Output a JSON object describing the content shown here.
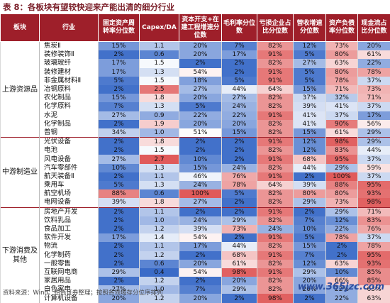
{
  "title": "表 8：各板块有望较快迎来产能出清的细分行业",
  "headers": [
    "板块",
    "行业",
    "固定资产周转率分位数",
    "Capex/DA",
    "资本开支+在建工程增速分位数",
    "毛利率分位数",
    "亏损企业占比分位数",
    "营收增速分位数",
    "资产负债率分位数",
    "现金流占比分位数"
  ],
  "groups": [
    {
      "name": "上游资源品",
      "rows": [
        {
          "industry": "焦炭Ⅱ",
          "values": [
            "15%",
            "1.1",
            "20%",
            "7%",
            "82%",
            "12%",
            "73%",
            "20%"
          ]
        },
        {
          "industry": "装修装饰Ⅱ",
          "values": [
            "2%",
            "0.6",
            "20%",
            "17%",
            "91%",
            "5%",
            "80%",
            "61%"
          ]
        },
        {
          "industry": "玻璃玻纤",
          "values": [
            "17%",
            "1.5",
            "2%",
            "2%",
            "82%",
            "27%",
            "63%",
            "22%"
          ]
        },
        {
          "industry": "装修建材",
          "values": [
            "17%",
            "1.3",
            "54%",
            "2%",
            "91%",
            "5%",
            "80%",
            "78%"
          ]
        },
        {
          "industry": "非金属材料Ⅱ",
          "values": [
            "5%",
            "1.5",
            "18%",
            "5%",
            "91%",
            "5%",
            "78%",
            "37%"
          ]
        },
        {
          "industry": "冶钢原料",
          "values": [
            "2%",
            "2.5",
            "27%",
            "44%",
            "64%",
            "15%",
            "71%",
            "73%"
          ]
        },
        {
          "industry": "农化制品",
          "values": [
            "15%",
            "1.8",
            "20%",
            "27%",
            "82%",
            "37%",
            "32%",
            "71%"
          ]
        },
        {
          "industry": "化学原料",
          "values": [
            "7%",
            "1.3",
            "5%",
            "24%",
            "82%",
            "39%",
            "41%",
            "37%"
          ]
        },
        {
          "industry": "水泥",
          "values": [
            "27%",
            "0.9",
            "22%",
            "22%",
            "91%",
            "41%",
            "37%",
            "17%"
          ]
        },
        {
          "industry": "化学制品",
          "values": [
            "2%",
            "1.9",
            "20%",
            "20%",
            "82%",
            "41%",
            "90%",
            "56%"
          ]
        },
        {
          "industry": "普钢",
          "values": [
            "34%",
            "1.0",
            "51%",
            "15%",
            "82%",
            "15%",
            "61%",
            "29%"
          ]
        }
      ]
    },
    {
      "name": "中游制造业",
      "rows": [
        {
          "industry": "光伏设备",
          "values": [
            "2%",
            "1.8",
            "2%",
            "2%",
            "91%",
            "12%",
            "98%",
            "29%"
          ]
        },
        {
          "industry": "电池",
          "values": [
            "2%",
            "1.5",
            "2%",
            "2%",
            "82%",
            "12%",
            "83%",
            "44%"
          ]
        },
        {
          "industry": "风电设备",
          "values": [
            "27%",
            "2.7",
            "10%",
            "2%",
            "91%",
            "68%",
            "95%",
            "37%"
          ]
        },
        {
          "industry": "汽车零部件",
          "values": [
            "10%",
            "1.3",
            "15%",
            "24%",
            "82%",
            "44%",
            "29%",
            "59%"
          ]
        },
        {
          "industry": "航天装备Ⅱ",
          "values": [
            "2%",
            "1.1",
            "46%",
            "76%",
            "91%",
            "2%",
            "100%",
            "37%"
          ]
        },
        {
          "industry": "乘用车",
          "values": [
            "5%",
            "1.3",
            "24%",
            "78%",
            "64%",
            "39%",
            "88%",
            "95%"
          ]
        },
        {
          "industry": "航空机场",
          "values": [
            "88%",
            "0.6",
            "100%",
            "5%",
            "82%",
            "80%",
            "80%",
            "93%"
          ]
        },
        {
          "industry": "电网设备",
          "values": [
            "39%",
            "1.8",
            "27%",
            "2%",
            "82%",
            "29%",
            "73%",
            "98%"
          ]
        }
      ]
    },
    {
      "name": "下游消费及其他",
      "rows": [
        {
          "industry": "房地产开发",
          "values": [
            "2%",
            "1.1",
            "2%",
            "2%",
            "91%",
            "2%",
            "29%",
            "71%"
          ]
        },
        {
          "industry": "饮料乳品",
          "values": [
            "2%",
            "1.0",
            "24%",
            "29%",
            "82%",
            "7%",
            "12%",
            "83%"
          ]
        },
        {
          "industry": "食品加工",
          "values": [
            "2%",
            "1.2",
            "39%",
            "73%",
            "24%",
            "10%",
            "22%",
            "76%"
          ]
        },
        {
          "industry": "软件开发",
          "values": [
            "17%",
            "1.4",
            "54%",
            "2%",
            "91%",
            "5%",
            "78%",
            "37%"
          ]
        },
        {
          "industry": "物流",
          "values": [
            "2%",
            "1.1",
            "17%",
            "44%",
            "82%",
            "15%",
            "2%",
            "78%"
          ]
        },
        {
          "industry": "化学制药",
          "values": [
            "2%",
            "1.2",
            "2%",
            "68%",
            "91%",
            "7%",
            "2%",
            "95%"
          ]
        },
        {
          "industry": "一般零售",
          "values": [
            "2%",
            "0.6",
            "20%",
            "61%",
            "82%",
            "12%",
            "63%",
            "93%"
          ]
        },
        {
          "industry": "互联网电商",
          "values": [
            "29%",
            "0.4",
            "54%",
            "98%",
            "91%",
            "29%",
            "10%",
            "85%"
          ]
        },
        {
          "industry": "家居用品",
          "values": [
            "2%",
            "1.2",
            "2%",
            "20%",
            "82%",
            "20%",
            "66%",
            "85%"
          ]
        },
        {
          "industry": "白色家电",
          "values": [
            "27%",
            "1.0",
            "7%",
            "29%",
            "82%",
            "20%",
            "22%",
            "63%"
          ]
        },
        {
          "industry": "计算机设备",
          "values": [
            "20%",
            "1.2",
            "20%",
            "2%",
            "98%",
            "2%",
            "22%",
            "63%"
          ]
        }
      ]
    }
  ],
  "source_note": "资料来源：Wind、招商证券整理；按照各领域存分位序排列",
  "watermark": "www.365jzc.com",
  "colors": {
    "header_bg": "#9e1f2a",
    "title": "#7a1e28",
    "low": "#3a6bc8",
    "high": "#e05a5a"
  }
}
